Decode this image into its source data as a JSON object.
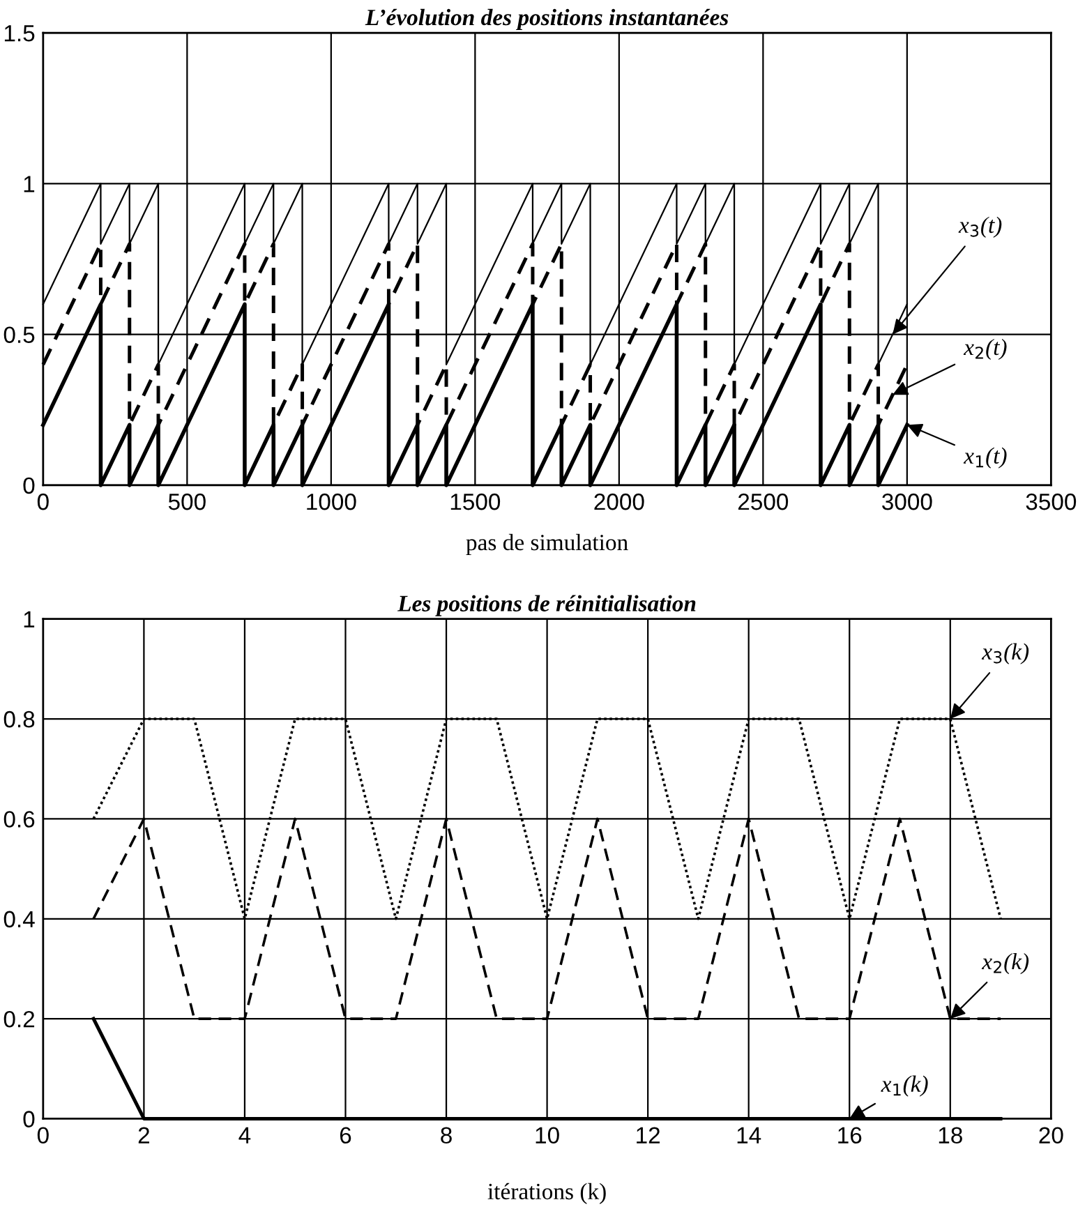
{
  "chart_data": [
    {
      "type": "line",
      "title": "L’évolution des positions instantanées",
      "xlabel": "pas de simulation",
      "xlim": [
        0,
        3500
      ],
      "xticks": [
        0,
        500,
        1000,
        1500,
        2000,
        2500,
        3000,
        3500
      ],
      "ylim": [
        0,
        1.5
      ],
      "yticks": [
        0,
        0.5,
        1,
        1.5
      ],
      "grid": true,
      "series": [
        {
          "name": "x$_{1}$(t)",
          "color": "#000000",
          "line_style": "solid",
          "x": [
            0,
            200,
            200,
            300,
            300,
            400,
            400,
            700,
            700,
            800,
            800,
            900,
            900,
            1200,
            1200,
            1300,
            1300,
            1400,
            1400,
            1700,
            1700,
            1800,
            1800,
            1900,
            1900,
            2200,
            2200,
            2300,
            2300,
            2400,
            2400,
            2700,
            2700,
            2800,
            2800,
            2900,
            2900,
            3000
          ],
          "values": [
            0.2,
            0.6,
            0,
            0.2,
            0,
            0.2,
            0,
            0.6,
            0,
            0.2,
            0,
            0.2,
            0,
            0.6,
            0,
            0.2,
            0,
            0.2,
            0,
            0.6,
            0,
            0.2,
            0,
            0.2,
            0,
            0.6,
            0,
            0.2,
            0,
            0.2,
            0,
            0.6,
            0,
            0.2,
            0,
            0.2,
            0,
            0.2
          ]
        },
        {
          "name": "x$_{2}$(t)",
          "color": "#000000",
          "line_style": "dashed",
          "x": [
            0,
            200,
            200,
            300,
            300,
            400,
            400,
            700,
            700,
            800,
            800,
            900,
            900,
            1200,
            1200,
            1300,
            1300,
            1400,
            1400,
            1700,
            1700,
            1800,
            1800,
            1900,
            1900,
            2200,
            2200,
            2300,
            2300,
            2400,
            2400,
            2700,
            2700,
            2800,
            2800,
            2900,
            2900,
            3000
          ],
          "values": [
            0.4,
            0.8,
            0.6,
            0.8,
            0.2,
            0.4,
            0.2,
            0.8,
            0.6,
            0.8,
            0.2,
            0.4,
            0.2,
            0.8,
            0.6,
            0.8,
            0.2,
            0.4,
            0.2,
            0.8,
            0.6,
            0.8,
            0.2,
            0.4,
            0.2,
            0.8,
            0.6,
            0.8,
            0.2,
            0.4,
            0.2,
            0.8,
            0.6,
            0.8,
            0.2,
            0.4,
            0.2,
            0.4
          ]
        },
        {
          "name": "x$_{3}$(t)",
          "color": "#000000",
          "line_style": "solid",
          "x": [
            0,
            200,
            200,
            300,
            300,
            400,
            400,
            700,
            700,
            800,
            800,
            900,
            900,
            1200,
            1200,
            1300,
            1300,
            1400,
            1400,
            1700,
            1700,
            1800,
            1800,
            1900,
            1900,
            2200,
            2200,
            2300,
            2300,
            2400,
            2400,
            2700,
            2700,
            2800,
            2800,
            2900,
            2900,
            3000
          ],
          "values": [
            0.6,
            1,
            0.8,
            1,
            0.8,
            1,
            0.4,
            1,
            0.8,
            1,
            0.8,
            1,
            0.4,
            1,
            0.8,
            1,
            0.8,
            1,
            0.4,
            1,
            0.8,
            1,
            0.8,
            1,
            0.4,
            1,
            0.8,
            1,
            0.8,
            1,
            0.4,
            1,
            0.8,
            1,
            0.8,
            1,
            0.4,
            0.6
          ]
        }
      ]
    },
    {
      "type": "line",
      "title": "Les positions de réinitialisation",
      "xlabel": "itérations (k)",
      "xlim": [
        0,
        20
      ],
      "xticks": [
        0,
        2,
        4,
        6,
        8,
        10,
        12,
        14,
        16,
        18,
        20
      ],
      "ylim": [
        0,
        1
      ],
      "yticks": [
        0,
        0.2,
        0.4,
        0.6,
        0.8,
        1
      ],
      "grid": true,
      "series": [
        {
          "name": "x$_{1}$(k)",
          "color": "#000000",
          "line_style": "solid",
          "x": [
            1,
            2,
            3,
            4,
            5,
            6,
            7,
            8,
            9,
            10,
            11,
            12,
            13,
            14,
            15,
            16,
            17,
            18,
            19
          ],
          "values": [
            0.2,
            0,
            0,
            0,
            0,
            0,
            0,
            0,
            0,
            0,
            0,
            0,
            0,
            0,
            0,
            0,
            0,
            0,
            0
          ]
        },
        {
          "name": "x$_{2}$(k)",
          "color": "#000000",
          "line_style": "dashed",
          "x": [
            1,
            2,
            3,
            4,
            5,
            6,
            7,
            8,
            9,
            10,
            11,
            12,
            13,
            14,
            15,
            16,
            17,
            18,
            19
          ],
          "values": [
            0.4,
            0.6,
            0.2,
            0.2,
            0.6,
            0.2,
            0.2,
            0.6,
            0.2,
            0.2,
            0.6,
            0.2,
            0.2,
            0.6,
            0.2,
            0.2,
            0.6,
            0.2,
            0.2
          ]
        },
        {
          "name": "x$_{3}$(k)",
          "color": "#000000",
          "line_style": "dotted",
          "x": [
            1,
            2,
            3,
            4,
            5,
            6,
            7,
            8,
            9,
            10,
            11,
            12,
            13,
            14,
            15,
            16,
            17,
            18,
            19
          ],
          "values": [
            0.6,
            0.8,
            0.8,
            0.4,
            0.8,
            0.8,
            0.4,
            0.8,
            0.8,
            0.4,
            0.8,
            0.8,
            0.4,
            0.8,
            0.8,
            0.4,
            0.8,
            0.8,
            0.4
          ]
        }
      ]
    }
  ]
}
